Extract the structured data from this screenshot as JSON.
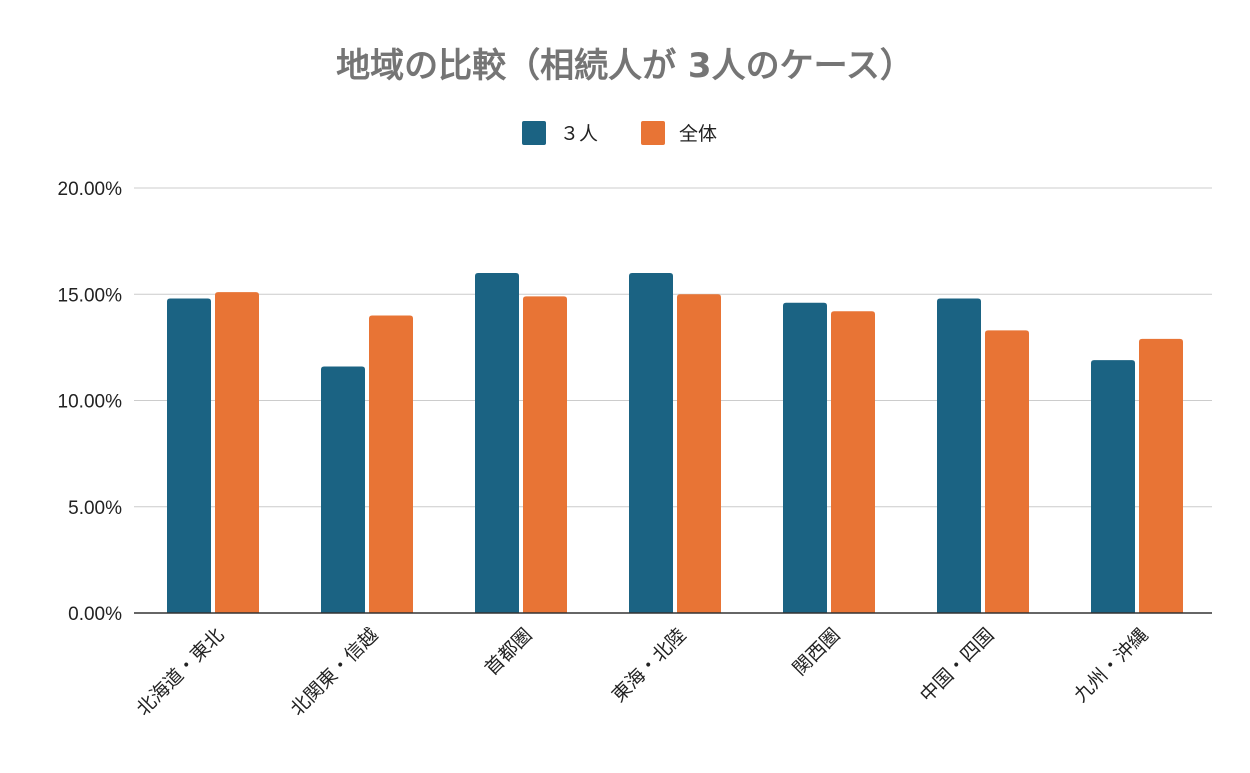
{
  "chart_data": {
    "type": "bar",
    "title": "地域の比較（相続人が 3人のケース）",
    "categories": [
      "北海道・東北",
      "北関東・信越",
      "首都圏",
      "東海・北陸",
      "関西圏",
      "中国・四国",
      "九州・沖縄"
    ],
    "series": [
      {
        "name": "３人",
        "color": "#1b6383",
        "values": [
          14.8,
          11.6,
          16.0,
          16.0,
          14.6,
          14.8,
          11.9
        ]
      },
      {
        "name": "全体",
        "color": "#e87435",
        "values": [
          15.1,
          14.0,
          14.9,
          15.0,
          14.2,
          13.3,
          12.9
        ]
      }
    ],
    "ylim": [
      0,
      20
    ],
    "yticks": [
      0,
      5,
      10,
      15,
      20
    ],
    "ytick_labels": [
      "0.00%",
      "5.00%",
      "10.00%",
      "15.00%",
      "20.00%"
    ],
    "grid": true,
    "legend_position": "top-center",
    "xlabel": "",
    "ylabel": ""
  }
}
